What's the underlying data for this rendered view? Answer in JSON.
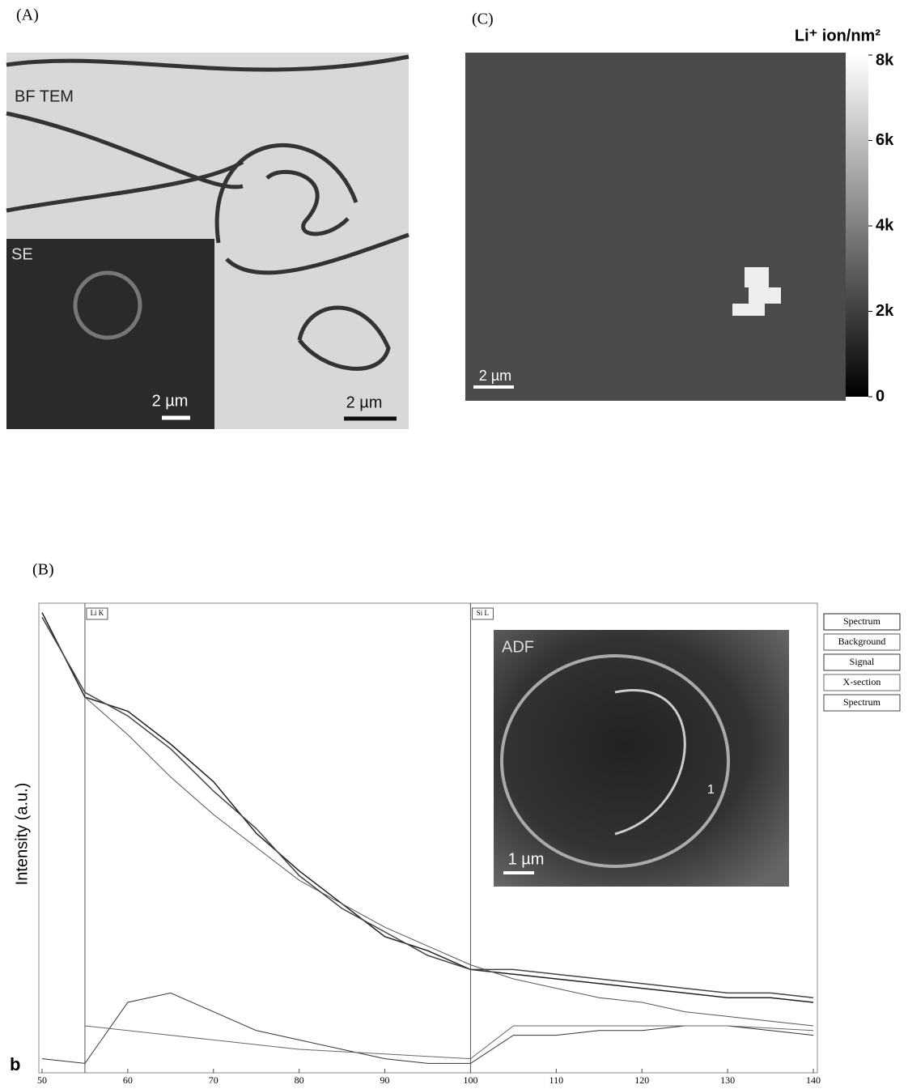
{
  "panel_a": {
    "label": "(A)",
    "main_label": "BF TEM",
    "scale_bar": "2 µm",
    "inset_label": "SE",
    "inset_scale_bar": "2 µm"
  },
  "panel_c": {
    "label": "(C)",
    "scale_bar": "2 µm",
    "colorbar": {
      "title": "Li⁺ ion/nm²",
      "lim": [
        0,
        8000
      ],
      "ticks": [
        {
          "value": 8000,
          "label": "8k"
        },
        {
          "value": 6000,
          "label": "6k"
        },
        {
          "value": 4000,
          "label": "4k"
        },
        {
          "value": 2000,
          "label": "2k"
        },
        0
      ]
    }
  },
  "chart_data": {
    "type": "line",
    "panel_label": "(B)",
    "corner_label": "b",
    "y_label": "Intensity (a.u.)",
    "x": [
      50,
      55,
      60,
      65,
      70,
      75,
      80,
      85,
      90,
      95,
      100,
      105,
      110,
      115,
      120,
      125,
      130,
      135,
      140
    ],
    "xlim": [
      50,
      140
    ],
    "xticks": [
      50,
      60,
      70,
      80,
      90,
      100,
      110,
      120,
      130,
      140
    ],
    "ylim": [
      0,
      100
    ],
    "edges": [
      {
        "value": 55,
        "label": "Li K"
      },
      {
        "value": 100,
        "label": "Si L"
      }
    ],
    "series": [
      {
        "name": "Spectrum",
        "color": "#222222",
        "values": [
          98,
          80,
          77,
          70,
          62,
          51,
          43,
          36,
          29,
          26,
          22,
          21,
          20,
          19,
          18,
          17,
          16,
          16,
          15
        ]
      },
      {
        "name": "Background",
        "color": "#555555",
        "values": [
          null,
          80,
          72,
          63,
          55,
          48,
          41,
          36,
          31,
          27,
          23,
          20,
          18,
          16,
          15,
          13,
          12,
          11,
          10
        ]
      },
      {
        "name": "Signal",
        "color": "#333333",
        "values": [
          3,
          2,
          15,
          17,
          13,
          9,
          7,
          5,
          3,
          2,
          2,
          8,
          8,
          9,
          9,
          10,
          10,
          9,
          8
        ]
      },
      {
        "name": "X-section",
        "color": "#666666",
        "values": [
          null,
          10,
          9,
          8,
          7,
          6,
          5,
          4.5,
          4,
          3.5,
          3,
          10,
          10,
          10,
          10,
          10,
          10,
          9.5,
          9
        ]
      },
      {
        "name": "Spectrum",
        "color": "#444444",
        "values": [
          97,
          81,
          76,
          69,
          60,
          52,
          42,
          35,
          30,
          25,
          22,
          22,
          21,
          20,
          19,
          18,
          17,
          17,
          16
        ]
      }
    ],
    "inset": {
      "label": "ADF",
      "scale_bar": "1 µm",
      "point_label": "1"
    }
  }
}
